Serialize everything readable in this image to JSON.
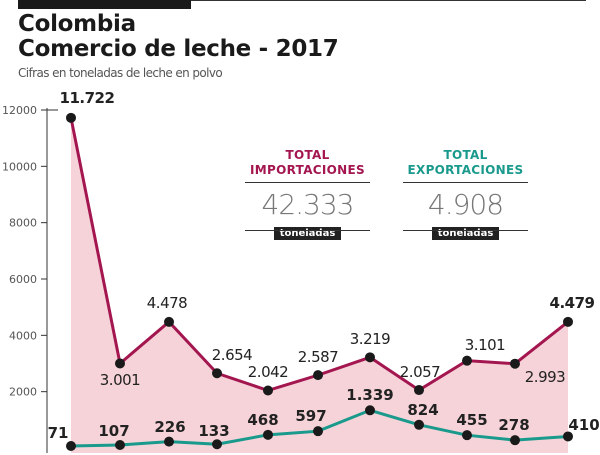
{
  "title_line1": "Colombia",
  "title_line2": "Comercio de leche - 2017",
  "subtitle": "Cifras en toneladas de leche en polvo",
  "totals": {
    "imports": {
      "label1": "TOTAL",
      "label2": "IMPORTACIONES",
      "value": "42.333",
      "unit": "toneladas",
      "color": "#a3164f"
    },
    "exports": {
      "label1": "TOTAL",
      "label2": "EXPORTACIONES",
      "value": "4.908",
      "unit": "toneladas",
      "color": "#1a9a8c"
    }
  },
  "chart_data": {
    "type": "line",
    "ylim": [
      0,
      12000
    ],
    "yticks": [
      2000,
      4000,
      6000,
      8000,
      10000,
      12000
    ],
    "ytick_labels": [
      "2000",
      "4000",
      "6000",
      "8000",
      "10000",
      "12000"
    ],
    "series": [
      {
        "values": [
          11722,
          3001,
          4478,
          2654,
          2042,
          2587,
          3219,
          2057,
          3101,
          2993,
          4479
        ],
        "labels": [
          "11.722",
          "3.001",
          "4.478",
          "2.654",
          "2.042",
          "2.587",
          "3.219",
          "2.057",
          "3.101",
          "2.993",
          "4.479"
        ],
        "color": "#a3164f",
        "fill": "#f6d3d8"
      },
      {
        "values": [
          71,
          107,
          226,
          133,
          468,
          597,
          1339,
          824,
          455,
          278,
          410
        ],
        "labels": [
          "71",
          "107",
          "226",
          "133",
          "468",
          "597",
          "1.339",
          "824",
          "455",
          "278",
          "410"
        ],
        "color": "#1a9a8c"
      }
    ]
  }
}
